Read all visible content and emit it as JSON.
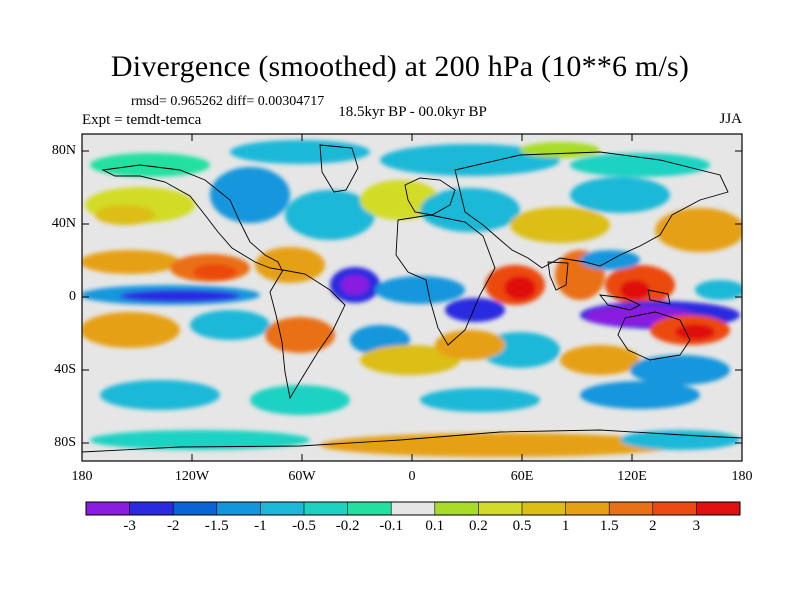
{
  "title": "Divergence (smoothed) at 200 hPa (10**6 m/s)",
  "stats": "rmsd= 0.965262 diff= 0.00304717",
  "experiment": "Expt = temdt-temca",
  "period": "18.5kyr BP - 00.0kyr BP",
  "season": "JJA",
  "lat_labels": [
    "80N",
    "40N",
    "0",
    "40S",
    "80S"
  ],
  "lon_labels": [
    "180",
    "120W",
    "60W",
    "0",
    "60E",
    "120E",
    "180"
  ],
  "colorbar": {
    "colors": [
      "#8a1ee0",
      "#2a2ae0",
      "#0a64d8",
      "#1496dc",
      "#1cb8d8",
      "#1ed2c2",
      "#24e0a0",
      "#e6e6e6",
      "#a8dc28",
      "#d2dc28",
      "#dcbe14",
      "#e6a014",
      "#ea7014",
      "#ec4a10",
      "#e01010"
    ],
    "labels": [
      "-3",
      "-2",
      "-1.5",
      "-1",
      "-0.5",
      "-0.2",
      "-0.1",
      "0.1",
      "0.2",
      "0.5",
      "1",
      "1.5",
      "2",
      "3"
    ]
  }
}
